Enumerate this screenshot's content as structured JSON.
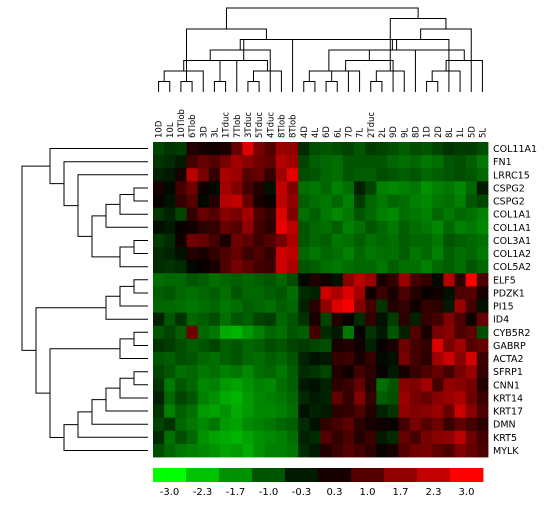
{
  "chart_data": {
    "type": "heatmap",
    "title": "",
    "xlabel": "",
    "ylabel": "",
    "columns": [
      "10D",
      "10L",
      "10Tlob",
      "6Tlob",
      "3D",
      "3L",
      "1Tduc",
      "7Tlob",
      "3Tduc",
      "5Tduc",
      "4Tduc",
      "8Tlob",
      "8Tlob",
      "4D",
      "4L",
      "6D",
      "6L",
      "7D",
      "7L",
      "2Tduc",
      "2L",
      "9D",
      "9L",
      "8D",
      "1D",
      "2D",
      "8L",
      "1L",
      "5D",
      "5L"
    ],
    "rows": [
      "COL11A1",
      "FN1",
      "LRRC15",
      "CSPG2",
      "CSPG2",
      "COL1A1",
      "COL1A1",
      "COL3A1",
      "COL1A2",
      "COL5A2",
      "ELF5",
      "PDZK1",
      "PI15",
      "ID4",
      "CYB5R2",
      "GABRP",
      "ACTA2",
      "SFRP1",
      "CNN1",
      "KRT14",
      "KRT17",
      "DMN",
      "KRT5",
      "MYLK"
    ],
    "values": [
      [
        -0.8,
        -0.6,
        -0.7,
        0.4,
        0.3,
        0.2,
        0.3,
        1.2,
        2.6,
        1.4,
        1.0,
        1.8,
        1.7,
        -0.5,
        -0.9,
        -1.0,
        -0.9,
        -0.8,
        -1.0,
        -0.7,
        -0.8,
        -0.9,
        -1.1,
        -0.9,
        -1.0,
        -0.8,
        -0.6,
        -0.7,
        -0.7,
        -0.9
      ],
      [
        -0.6,
        -0.5,
        -0.3,
        0.8,
        1.2,
        1.0,
        1.4,
        1.9,
        1.6,
        1.3,
        1.1,
        2.1,
        1.9,
        -0.8,
        -1.1,
        -1.2,
        -1.3,
        -1.0,
        -1.0,
        -1.0,
        -1.0,
        -1.2,
        -1.3,
        -1.2,
        -1.4,
        -1.3,
        -1.0,
        -0.9,
        -1.1,
        -1.4
      ],
      [
        -0.4,
        -0.3,
        0.3,
        2.2,
        1.4,
        0.6,
        2.0,
        1.8,
        1.0,
        1.2,
        0.6,
        1.9,
        2.7,
        -0.9,
        -1.0,
        -1.2,
        -1.3,
        -1.0,
        -1.1,
        -1.1,
        -0.9,
        -1.0,
        -1.1,
        -1.0,
        -1.2,
        -1.1,
        -1.0,
        -0.9,
        -1.0,
        -1.2
      ],
      [
        0.3,
        -0.1,
        0.8,
        1.3,
        0.2,
        -0.1,
        1.9,
        1.5,
        0.8,
        0.4,
        -0.2,
        2.3,
        1.5,
        -1.3,
        -1.4,
        -1.2,
        -1.5,
        -1.3,
        -0.4,
        -0.8,
        -1.5,
        -1.6,
        -1.5,
        -1.4,
        -1.7,
        -1.5,
        -1.4,
        -1.6,
        -1.2,
        -0.3
      ],
      [
        0.1,
        -0.2,
        0.6,
        1.0,
        -0.1,
        0.4,
        2.1,
        2.3,
        1.2,
        0.3,
        0.1,
        2.2,
        1.7,
        -1.1,
        -1.3,
        -1.4,
        -1.2,
        -1.5,
        -0.7,
        -1.2,
        -1.4,
        -1.2,
        -1.3,
        -1.5,
        -1.6,
        -1.4,
        -1.3,
        -1.5,
        -1.0,
        -0.8
      ],
      [
        -0.6,
        -0.4,
        -0.8,
        0.6,
        1.2,
        1.0,
        1.6,
        1.4,
        1.9,
        0.9,
        0.6,
        2.6,
        1.5,
        -1.3,
        -1.1,
        -1.4,
        -1.6,
        -1.4,
        -1.0,
        -1.2,
        -1.5,
        -1.6,
        -1.3,
        -1.4,
        -1.5,
        -1.2,
        -1.4,
        -1.2,
        -1.3,
        -1.5
      ],
      [
        -0.2,
        -0.3,
        0.1,
        0.2,
        0.5,
        0.6,
        1.2,
        1.0,
        1.7,
        0.8,
        0.5,
        2.7,
        2.2,
        -1.0,
        -1.2,
        -1.3,
        -1.1,
        -1.5,
        -1.3,
        -1.0,
        -1.2,
        -1.4,
        -1.1,
        -1.3,
        -1.4,
        -1.6,
        -1.2,
        -1.5,
        -1.4,
        -1.6
      ],
      [
        -0.7,
        -0.5,
        0.2,
        1.3,
        1.2,
        0.8,
        0.3,
        1.3,
        1.1,
        0.7,
        1.0,
        1.4,
        2.0,
        -1.0,
        -1.2,
        -1.1,
        -1.4,
        -1.3,
        -1.1,
        -1.3,
        -1.2,
        -1.3,
        -1.1,
        -1.2,
        -1.2,
        -1.4,
        -1.0,
        -1.1,
        -1.2,
        -1.3
      ],
      [
        -0.5,
        -0.4,
        -0.2,
        0.4,
        0.3,
        0.6,
        0.9,
        1.2,
        0.7,
        0.9,
        0.6,
        2.4,
        2.2,
        -1.2,
        -1.4,
        -1.2,
        -1.3,
        -1.5,
        -1.2,
        -1.4,
        -1.3,
        -1.3,
        -1.1,
        -1.4,
        -1.2,
        -1.5,
        -1.1,
        -1.3,
        -1.2,
        -1.4
      ],
      [
        -0.5,
        -0.6,
        -0.5,
        -0.1,
        0.1,
        0.3,
        0.9,
        1.4,
        1.1,
        0.8,
        0.7,
        2.4,
        2.0,
        -1.0,
        -1.1,
        -1.3,
        -1.4,
        -1.3,
        -1.2,
        -1.2,
        -1.4,
        -1.1,
        -1.3,
        -1.3,
        -1.5,
        -1.2,
        -1.1,
        -1.3,
        -1.0,
        -1.2
      ],
      [
        -1.3,
        -1.2,
        -1.2,
        -1.0,
        -1.1,
        -1.3,
        -1.2,
        -1.1,
        -1.2,
        -1.1,
        -1.0,
        -1.2,
        -0.9,
        -0.1,
        0.4,
        0.2,
        -0.2,
        1.6,
        2.2,
        1.8,
        0.3,
        0.6,
        1.8,
        0.8,
        0.6,
        -0.1,
        2.1,
        0.5,
        3.0,
        0.9
      ],
      [
        -1.1,
        -1.0,
        -1.2,
        -1.3,
        -1.2,
        -1.1,
        -1.3,
        -1.0,
        -1.2,
        -1.2,
        -1.1,
        -1.0,
        -1.3,
        -0.5,
        -0.4,
        2.4,
        2.0,
        2.6,
        1.9,
        0.2,
        0.7,
        0.3,
        0.9,
        0.4,
        0.1,
        0.2,
        -0.2,
        0.9,
        1.0,
        0.3
      ],
      [
        -1.2,
        -1.2,
        -1.3,
        -1.4,
        -1.3,
        -1.2,
        -1.4,
        -1.3,
        -1.1,
        -1.2,
        -1.3,
        -1.1,
        -1.2,
        -0.4,
        0.5,
        1.7,
        2.6,
        2.9,
        1.5,
        0.8,
        -0.6,
        0.4,
        0.6,
        0.2,
        0.6,
        0.5,
        -0.3,
        1.8,
        0.8,
        -0.2
      ],
      [
        -0.4,
        -1.0,
        -0.6,
        -1.2,
        -1.1,
        -0.9,
        -1.3,
        -1.0,
        -1.1,
        -0.8,
        -0.7,
        -1.2,
        -1.0,
        -0.6,
        0.3,
        -0.8,
        0.4,
        0.1,
        -0.5,
        0.6,
        -0.2,
        -0.7,
        0.5,
        -0.4,
        0.6,
        0.8,
        1.5,
        0.9,
        0.2,
        1.2
      ],
      [
        -1.0,
        -0.8,
        -1.1,
        1.3,
        -1.2,
        -1.4,
        -2.0,
        -2.1,
        -1.8,
        -1.5,
        -1.2,
        -1.3,
        -1.0,
        -1.1,
        0.8,
        -0.5,
        -0.3,
        -1.4,
        0.1,
        -0.6,
        -0.3,
        -1.0,
        -0.4,
        1.0,
        0.3,
        1.4,
        1.6,
        0.9,
        1.1,
        -0.9
      ],
      [
        -0.6,
        -0.7,
        -0.9,
        -1.1,
        -1.0,
        -0.8,
        -1.1,
        -1.0,
        -1.2,
        -1.1,
        -0.9,
        -1.0,
        -0.8,
        -0.7,
        -0.8,
        -0.9,
        0.3,
        0.4,
        0.2,
        -0.4,
        0.1,
        0.3,
        1.3,
        0.8,
        0.6,
        2.6,
        1.4,
        1.9,
        1.0,
        1.2
      ],
      [
        -1.0,
        -1.1,
        -0.9,
        -1.0,
        -1.2,
        -1.3,
        -1.1,
        -1.0,
        -1.2,
        -1.3,
        -1.1,
        -1.2,
        -1.0,
        -0.4,
        -0.2,
        -0.3,
        0.6,
        0.7,
        0.3,
        0.6,
        -0.1,
        -0.2,
        1.4,
        0.8,
        0.5,
        1.9,
        2.4,
        1.6,
        2.5,
        0.7
      ],
      [
        -0.8,
        -1.0,
        -1.3,
        -1.2,
        -1.4,
        -1.3,
        -1.5,
        -1.4,
        -1.6,
        -1.3,
        -1.2,
        -1.4,
        -1.1,
        -0.5,
        -0.6,
        -0.8,
        0.4,
        0.2,
        0.8,
        0.5,
        0.1,
        -0.3,
        0.3,
        0.7,
        0.9,
        1.2,
        0.8,
        1.4,
        1.8,
        0.6
      ],
      [
        -0.6,
        -1.4,
        -1.0,
        -1.2,
        -1.6,
        -1.5,
        -1.8,
        -1.9,
        -1.7,
        -1.5,
        -1.6,
        -1.3,
        -1.1,
        -0.3,
        -0.2,
        -0.4,
        0.5,
        0.7,
        1.2,
        0.4,
        -1.3,
        -1.0,
        1.6,
        1.5,
        1.9,
        0.8,
        1.7,
        1.6,
        1.4,
        0.4
      ],
      [
        -0.4,
        -1.2,
        -0.8,
        -1.0,
        -1.5,
        -1.7,
        -2.0,
        -2.1,
        -1.8,
        -1.6,
        -1.5,
        -1.4,
        -1.2,
        -0.5,
        -0.3,
        -0.4,
        1.1,
        0.6,
        1.5,
        0.6,
        -1.1,
        -0.9,
        1.8,
        1.4,
        1.2,
        1.6,
        1.8,
        2.0,
        1.3,
        0.7
      ],
      [
        -0.6,
        -1.5,
        -1.1,
        -1.3,
        -1.8,
        -1.9,
        -1.7,
        -2.0,
        -1.8,
        -1.6,
        -1.6,
        -1.5,
        -1.3,
        -0.2,
        -0.4,
        -0.3,
        0.5,
        0.6,
        0.9,
        0.4,
        -0.4,
        -0.6,
        1.7,
        1.5,
        1.6,
        1.8,
        1.2,
        2.4,
        1.6,
        0.9
      ],
      [
        -0.8,
        -0.6,
        -1.2,
        -1.4,
        -1.6,
        -1.4,
        -1.8,
        -1.9,
        -1.6,
        -1.5,
        -1.4,
        -1.2,
        -1.1,
        -0.5,
        -0.2,
        0.6,
        0.8,
        1.1,
        0.5,
        0.3,
        0.2,
        0.1,
        0.8,
        1.4,
        1.0,
        1.3,
        0.7,
        1.1,
        0.8,
        0.5
      ],
      [
        -0.5,
        -1.3,
        -0.9,
        -1.2,
        -1.7,
        -1.9,
        -2.0,
        -2.1,
        -1.9,
        -1.7,
        -1.6,
        -1.5,
        -1.3,
        -0.4,
        -0.5,
        1.0,
        0.6,
        0.9,
        0.4,
        0.7,
        -0.3,
        -0.5,
        1.2,
        0.8,
        1.4,
        1.6,
        1.7,
        2.2,
        1.3,
        0.8
      ],
      [
        -0.9,
        -1.2,
        -1.4,
        -1.5,
        -1.6,
        -1.7,
        -1.9,
        -1.8,
        -2.0,
        -1.7,
        -1.5,
        -1.5,
        -1.4,
        -0.5,
        -0.3,
        0.4,
        0.7,
        1.0,
        0.8,
        0.5,
        0.1,
        0.3,
        1.0,
        1.3,
        1.4,
        1.1,
        0.9,
        1.5,
        1.2,
        0.9
      ]
    ],
    "color_scale": {
      "min": -3.0,
      "max": 3.0,
      "low_color": "#00ff00",
      "mid_color": "#000000",
      "high_color": "#ff0000",
      "ticks": [
        "-3.0",
        "-2.3",
        "-1.7",
        "-1.0",
        "-0.3",
        "0.3",
        "1.0",
        "1.7",
        "2.3",
        "3.0"
      ]
    },
    "column_dendrogram": [
      [
        0,
        1
      ],
      [
        2,
        3
      ],
      [
        30,
        4
      ],
      [
        5,
        6
      ],
      [
        32,
        7
      ],
      [
        8,
        9
      ],
      [
        34,
        10
      ],
      [
        35,
        11
      ],
      [
        36,
        12
      ],
      [
        33,
        37
      ],
      [
        31,
        38
      ],
      [
        13,
        14
      ],
      [
        15,
        16
      ],
      [
        41,
        17
      ],
      [
        42,
        18
      ],
      [
        19,
        20
      ],
      [
        44,
        21
      ],
      [
        45,
        22
      ],
      [
        46,
        23
      ],
      [
        24,
        25
      ],
      [
        48,
        26
      ],
      [
        49,
        27
      ],
      [
        50,
        28
      ],
      [
        51,
        29
      ],
      [
        47,
        52
      ],
      [
        43,
        53
      ],
      [
        40,
        54
      ],
      [
        39,
        55
      ]
    ],
    "row_dendrogram": [
      [
        3,
        4
      ],
      [
        24,
        5
      ],
      [
        25,
        6
      ],
      [
        7,
        8
      ],
      [
        27,
        9
      ],
      [
        26,
        28
      ],
      [
        2,
        29
      ],
      [
        1,
        30
      ],
      [
        0,
        31
      ],
      [
        10,
        11
      ],
      [
        33,
        12
      ],
      [
        34,
        13
      ],
      [
        14,
        15
      ],
      [
        36,
        16
      ],
      [
        17,
        18
      ],
      [
        38,
        19
      ],
      [
        39,
        20
      ],
      [
        40,
        21
      ],
      [
        41,
        22
      ],
      [
        42,
        23
      ],
      [
        37,
        43
      ],
      [
        35,
        44
      ],
      [
        32,
        45
      ]
    ]
  }
}
